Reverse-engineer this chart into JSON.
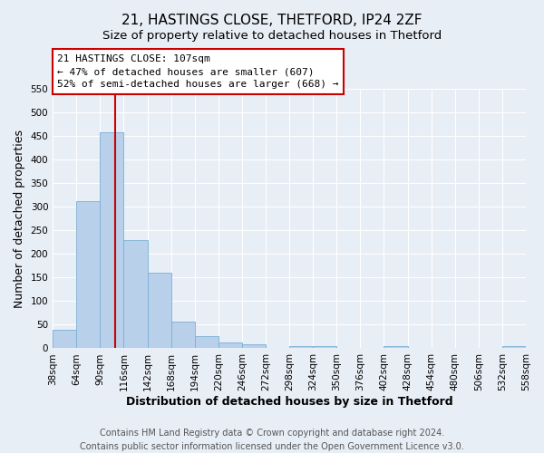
{
  "title": "21, HASTINGS CLOSE, THETFORD, IP24 2ZF",
  "subtitle": "Size of property relative to detached houses in Thetford",
  "xlabel": "Distribution of detached houses by size in Thetford",
  "ylabel": "Number of detached properties",
  "bar_color": "#b8d0ea",
  "bar_edge_color": "#7aafd4",
  "background_color": "#e8eef6",
  "grid_color": "#ffffff",
  "bin_edges": [
    38,
    64,
    90,
    116,
    142,
    168,
    194,
    220,
    246,
    272,
    298,
    324,
    350,
    376,
    402,
    428,
    454,
    480,
    506,
    532,
    558
  ],
  "bar_heights": [
    39,
    311,
    457,
    229,
    160,
    57,
    25,
    12,
    8,
    0,
    5,
    5,
    0,
    0,
    4,
    0,
    0,
    0,
    0,
    4
  ],
  "property_size": 107,
  "vline_color": "#cc0000",
  "annotation_title": "21 HASTINGS CLOSE: 107sqm",
  "annotation_line1": "← 47% of detached houses are smaller (607)",
  "annotation_line2": "52% of semi-detached houses are larger (668) →",
  "annotation_box_color": "#ffffff",
  "annotation_box_edge": "#cc0000",
  "ylim": [
    0,
    550
  ],
  "tick_labels": [
    "38sqm",
    "64sqm",
    "90sqm",
    "116sqm",
    "142sqm",
    "168sqm",
    "194sqm",
    "220sqm",
    "246sqm",
    "272sqm",
    "298sqm",
    "324sqm",
    "350sqm",
    "376sqm",
    "402sqm",
    "428sqm",
    "454sqm",
    "480sqm",
    "506sqm",
    "532sqm",
    "558sqm"
  ],
  "footer_line1": "Contains HM Land Registry data © Crown copyright and database right 2024.",
  "footer_line2": "Contains public sector information licensed under the Open Government Licence v3.0.",
  "title_fontsize": 11,
  "subtitle_fontsize": 9.5,
  "axis_label_fontsize": 9,
  "tick_fontsize": 7.5,
  "footer_fontsize": 7,
  "annotation_fontsize": 8
}
